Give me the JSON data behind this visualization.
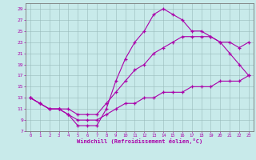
{
  "xlabel": "Windchill (Refroidissement éolien,°C)",
  "bg_color": "#c8eaea",
  "line_color": "#aa00aa",
  "grid_color": "#99bbbb",
  "spine_color": "#7a7a7a",
  "xlim": [
    -0.5,
    23.5
  ],
  "ylim": [
    7,
    30
  ],
  "xticks": [
    0,
    1,
    2,
    3,
    4,
    5,
    6,
    7,
    8,
    9,
    10,
    11,
    12,
    13,
    14,
    15,
    16,
    17,
    18,
    19,
    20,
    21,
    22,
    23
  ],
  "yticks": [
    7,
    9,
    11,
    13,
    15,
    17,
    19,
    21,
    23,
    25,
    27,
    29
  ],
  "line1_x": [
    0,
    1,
    2,
    3,
    4,
    5,
    6,
    7,
    8,
    9,
    10,
    11,
    12,
    13,
    14,
    15,
    16,
    17,
    18,
    19,
    20,
    21,
    22,
    23
  ],
  "line1_y": [
    13,
    12,
    11,
    11,
    10,
    8,
    8,
    8,
    11,
    16,
    20,
    23,
    25,
    28,
    29,
    28,
    27,
    25,
    25,
    24,
    23,
    21,
    19,
    17
  ],
  "line2_x": [
    0,
    1,
    2,
    3,
    4,
    5,
    6,
    7,
    8,
    9,
    10,
    11,
    12,
    13,
    14,
    15,
    16,
    17,
    18,
    19,
    20,
    21,
    22,
    23
  ],
  "line2_y": [
    13,
    12,
    11,
    11,
    10,
    9,
    9,
    9,
    10,
    11,
    12,
    12,
    13,
    13,
    14,
    14,
    14,
    15,
    15,
    15,
    16,
    16,
    16,
    17
  ],
  "line3_x": [
    0,
    1,
    2,
    3,
    4,
    5,
    6,
    7,
    8,
    9,
    10,
    11,
    12,
    13,
    14,
    15,
    16,
    17,
    18,
    19,
    20,
    21,
    22,
    23
  ],
  "line3_y": [
    13,
    12,
    11,
    11,
    11,
    10,
    10,
    10,
    12,
    14,
    16,
    18,
    19,
    21,
    22,
    23,
    24,
    24,
    24,
    24,
    23,
    23,
    22,
    23
  ]
}
